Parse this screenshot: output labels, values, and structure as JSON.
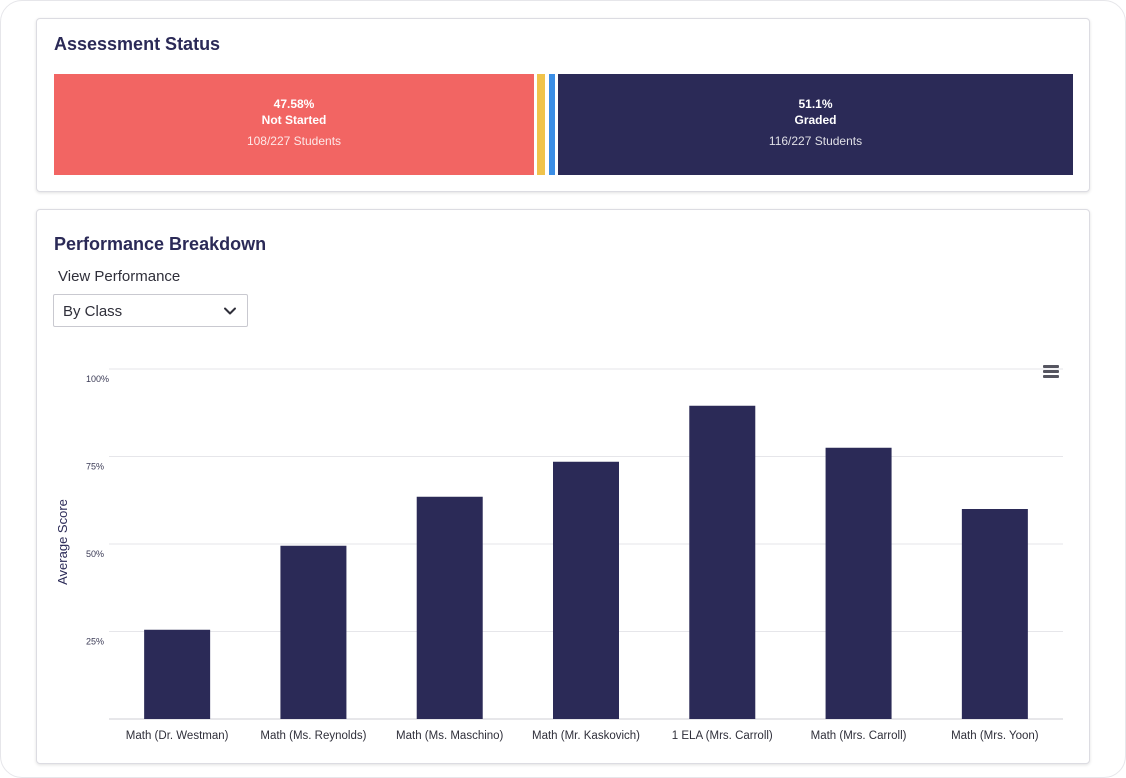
{
  "assessment_status": {
    "title": "Assessment Status",
    "segments": [
      {
        "key": "not_started",
        "percent": "47.58%",
        "label": "Not Started",
        "count": "108/227 Students",
        "color": "#f26563"
      },
      {
        "key": "in_progress",
        "color": "#f0c34b"
      },
      {
        "key": "submitted",
        "color": "#3b8ee6"
      },
      {
        "key": "graded",
        "percent": "51.1%",
        "label": "Graded",
        "count": "116/227 Students",
        "color": "#2b2a57"
      }
    ]
  },
  "performance": {
    "title": "Performance Breakdown",
    "view_label": "View Performance",
    "selected_view": "By Class",
    "icons": {
      "dropdown": "chevron-down-icon",
      "menu": "hamburger-menu-icon"
    }
  },
  "chart_data": {
    "type": "bar",
    "ylabel": "Average Score",
    "xlabel": "",
    "ylim": [
      0,
      100
    ],
    "yticks": [
      25,
      50,
      75,
      100
    ],
    "ytick_labels": [
      "25%",
      "50%",
      "75%",
      "100%"
    ],
    "grid": true,
    "bar_color": "#2b2a57",
    "categories": [
      "Math (Dr. Westman)",
      "Math (Ms. Reynolds)",
      "Math (Ms. Maschino)",
      "Math (Mr. Kaskovich)",
      "1 ELA (Mrs. Carroll)",
      "Math (Mrs. Carroll)",
      "Math (Mrs. Yoon)"
    ],
    "values": [
      25.5,
      49.5,
      63.5,
      73.5,
      89.5,
      77.5,
      60
    ]
  }
}
